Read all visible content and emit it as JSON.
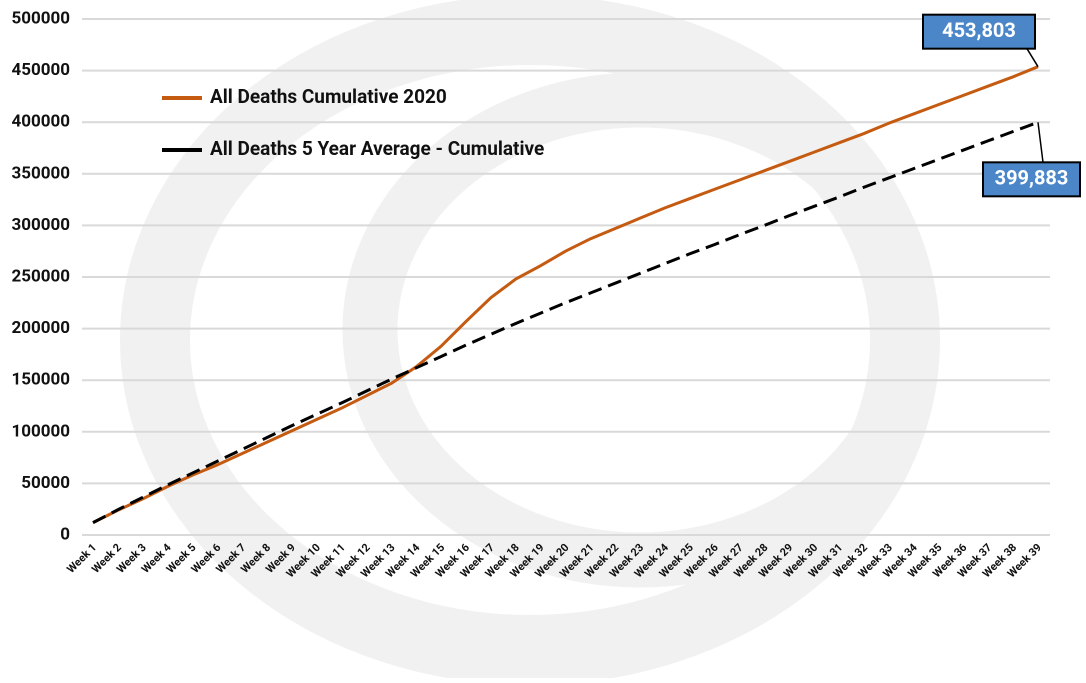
{
  "chart_data": {
    "type": "line",
    "categories": [
      "Week 1",
      "Week 2",
      "Week 3",
      "Week 4",
      "Week 5",
      "Week 6",
      "Week 7",
      "Week 8",
      "Week 9",
      "Week 10",
      "Week 11",
      "Week 12",
      "Week 13",
      "Week 14",
      "Week 15",
      "Week 16",
      "Week 17",
      "Week 18",
      "Week 19",
      "Week 20",
      "Week 21",
      "Week 22",
      "Week 23",
      "Week 24",
      "Week 25",
      "Week 26",
      "Week 27",
      "Week 28",
      "Week 29",
      "Week 30",
      "Week 31",
      "Week 32",
      "Week 33",
      "Week 34",
      "Week 35",
      "Week 36",
      "Week 37",
      "Week 38",
      "Week 39"
    ],
    "series": [
      {
        "name": "All Deaths Cumulative 2020",
        "color": "#c55a11",
        "dashed": false,
        "values": [
          12000,
          24000,
          35000,
          47000,
          58000,
          68000,
          79000,
          90000,
          101000,
          112000,
          123000,
          135000,
          147000,
          163000,
          183000,
          207000,
          230000,
          248000,
          261000,
          275000,
          287000,
          297000,
          307000,
          317000,
          326000,
          335000,
          344000,
          353000,
          362000,
          371000,
          380000,
          389000,
          399000,
          408000,
          417000,
          426000,
          435000,
          444000,
          453803
        ],
        "value_labels": [
          null,
          null,
          null,
          null,
          null,
          null,
          null,
          null,
          null,
          null,
          null,
          null,
          null,
          null,
          null,
          null,
          null,
          null,
          null,
          null,
          null,
          null,
          null,
          null,
          null,
          null,
          null,
          null,
          null,
          null,
          null,
          null,
          null,
          null,
          null,
          null,
          null,
          null,
          "453,803"
        ]
      },
      {
        "name": "All Deaths 5 Year Average - Cumulative",
        "color": "#000000",
        "dashed": true,
        "values": [
          12000,
          24500,
          36500,
          48500,
          60000,
          71500,
          83000,
          94500,
          106000,
          117000,
          128000,
          139500,
          151000,
          162000,
          173000,
          184000,
          194500,
          205000,
          215000,
          225000,
          234500,
          244000,
          253500,
          263000,
          272500,
          281500,
          291000,
          300000,
          309500,
          318500,
          327500,
          337000,
          346000,
          355000,
          364000,
          373000,
          382000,
          391000,
          399883
        ],
        "value_labels": [
          null,
          null,
          null,
          null,
          null,
          null,
          null,
          null,
          null,
          null,
          null,
          null,
          null,
          null,
          null,
          null,
          null,
          null,
          null,
          null,
          null,
          null,
          null,
          null,
          null,
          null,
          null,
          null,
          null,
          null,
          null,
          null,
          null,
          null,
          null,
          null,
          null,
          null,
          "399,883"
        ]
      }
    ],
    "label_color": "#4a86c8",
    "ylim": [
      0,
      500000
    ],
    "yticks": [
      0,
      50000,
      100000,
      150000,
      200000,
      250000,
      300000,
      350000,
      400000,
      450000,
      500000
    ],
    "grid": true
  }
}
